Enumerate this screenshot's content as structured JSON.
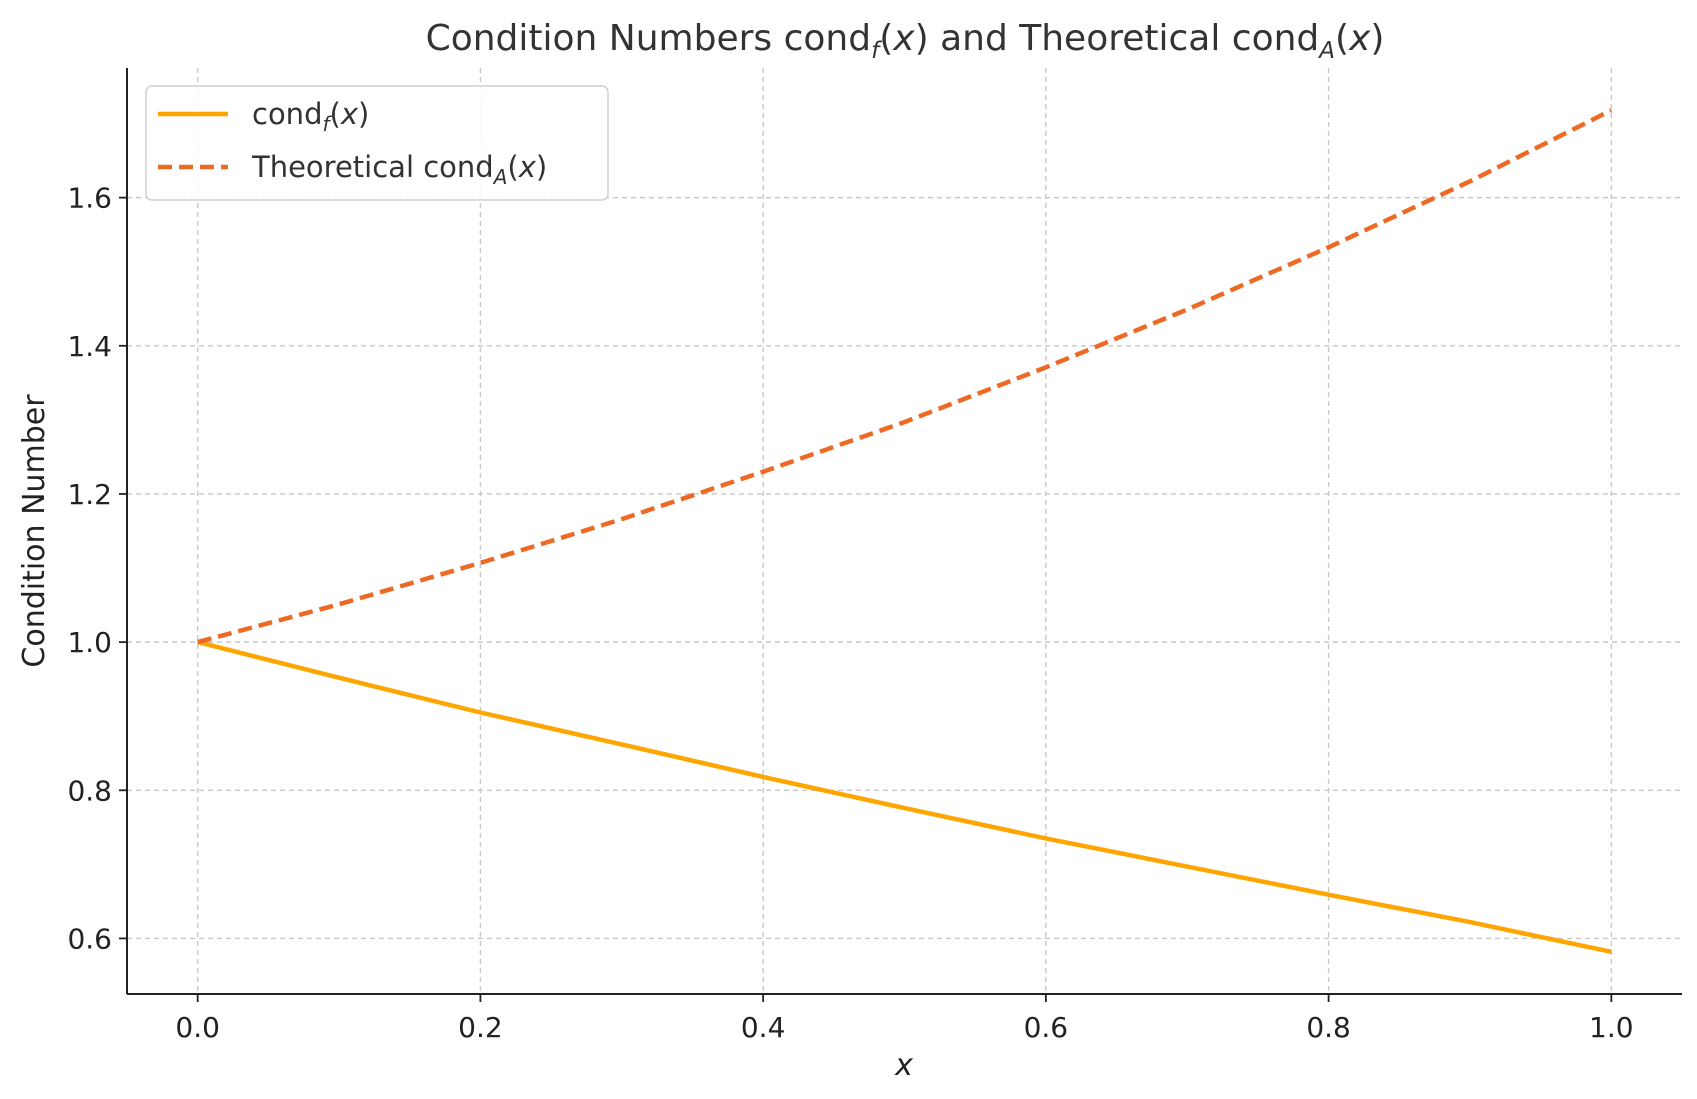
{
  "chart_data": {
    "type": "line",
    "title": "Condition Numbers cond_f(x) and Theoretical cond_A(x)",
    "title_parts": {
      "t1": "Condition Numbers cond",
      "sub1": "f",
      "t2": "(",
      "x1": "x",
      "t3": ") and Theoretical cond",
      "sub2": "A",
      "t4": "(",
      "x2": "x",
      "t5": ")"
    },
    "xlabel": "x",
    "ylabel": "Condition Number",
    "xlim": [
      -0.05,
      1.05
    ],
    "ylim": [
      0.525,
      1.775
    ],
    "xticks": [
      0.0,
      0.2,
      0.4,
      0.6,
      0.8,
      1.0
    ],
    "xtick_labels": [
      "0.0",
      "0.2",
      "0.4",
      "0.6",
      "0.8",
      "1.0"
    ],
    "yticks": [
      0.6,
      0.8,
      1.0,
      1.2,
      1.4,
      1.6
    ],
    "ytick_labels": [
      "0.6",
      "0.8",
      "1.0",
      "1.2",
      "1.4",
      "1.6"
    ],
    "grid": true,
    "legend_position": "top-left",
    "x": [
      0.0,
      0.1,
      0.2,
      0.3,
      0.4,
      0.5,
      0.6,
      0.7,
      0.8,
      0.9,
      1.0
    ],
    "series": [
      {
        "name": "cond_f(x)",
        "legend_parts": {
          "t1": "cond",
          "sub": "f",
          "t2": "(",
          "x": "x",
          "t3": ")"
        },
        "color": "#FFA500",
        "style": "solid",
        "values": [
          1.0,
          0.952,
          0.905,
          0.862,
          0.818,
          0.776,
          0.735,
          0.697,
          0.659,
          0.622,
          0.582
        ]
      },
      {
        "name": "Theoretical cond_A(x)",
        "legend_parts": {
          "t1": "Theoretical cond",
          "sub": "A",
          "t2": "(",
          "x": "x",
          "t3": ")"
        },
        "color": "#EE6A24",
        "style": "dashed",
        "values": [
          1.0,
          1.051,
          1.107,
          1.166,
          1.23,
          1.297,
          1.371,
          1.449,
          1.533,
          1.622,
          1.718
        ]
      }
    ]
  }
}
